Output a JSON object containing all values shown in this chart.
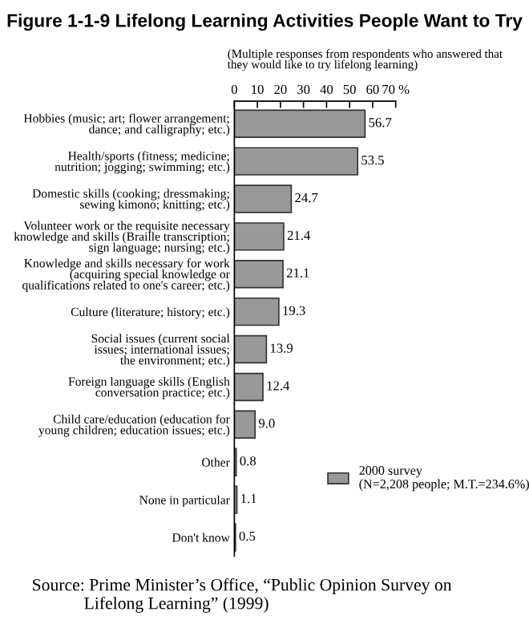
{
  "chart_data": {
    "type": "bar",
    "orientation": "horizontal",
    "title": "Figure 1-1-9 Lifelong Learning Activities People Want to Try",
    "subtitle": "(Multiple responses from respondents who answered that\nthey would like to try lifelong learning)",
    "categories": [
      "Hobbies (music; art; flower arrangement;\ndance; and calligraphy; etc.)",
      "Health/sports (fitness; medicine;\nnutrition; jogging; swimming; etc.)",
      "Domestic skills (cooking; dressmaking;\nsewing kimono; knitting; etc.)",
      "Volunteer work or the requisite necessary\nknowledge and skills (Braille transcription;\nsign language; nursing; etc.)",
      "Knowledge and skills necessary for work\n(acquiring special knowledge or\nqualifications related to one's career; etc.)",
      "Culture (literature; history; etc.)",
      "Social issues (current social\nissues; international issues;\nthe environment; etc.)",
      "Foreign language skills (English\nconversation practice; etc.)",
      "Child care/education (education for\nyoung children; education issues; etc.)",
      "Other",
      "None in particular",
      "Don't know"
    ],
    "series": [
      {
        "name": "2000 survey\n(N=2,208 people; M.T.=234.6%)",
        "color": "#999999",
        "values": [
          56.7,
          53.5,
          24.7,
          21.4,
          21.1,
          19.3,
          13.9,
          12.4,
          9.0,
          0.8,
          1.1,
          0.5
        ]
      }
    ],
    "xlim": [
      0,
      70
    ],
    "xticks": [
      0,
      10,
      20,
      30,
      40,
      50,
      60,
      {
        "value": 70,
        "label": "70 %"
      }
    ],
    "value_labels": [
      "56.7",
      "53.5",
      "24.7",
      "21.4",
      "21.1",
      "19.3",
      "13.9",
      "12.4",
      "9.0",
      "0.8",
      "1.1",
      "0.5"
    ],
    "grid": false,
    "legend": "bottom right",
    "annotations": [
      "Source: Prime Minister’s Office, “Public Opinion Survey on\n            Lifelong Learning” (1999)"
    ]
  }
}
